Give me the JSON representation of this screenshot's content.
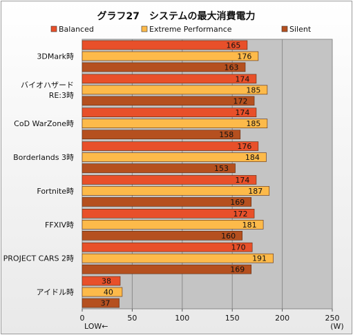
{
  "chart_data": {
    "type": "bar",
    "orientation": "horizontal",
    "title": "グラフ27　システムの最大消費電力",
    "categories": [
      [
        "3DMark時"
      ],
      [
        "バイオハザード",
        "RE:3時"
      ],
      [
        "CoD WarZone時"
      ],
      [
        "Borderlands 3時"
      ],
      [
        "Fortnite時"
      ],
      [
        "FFXIV時"
      ],
      [
        "PROJECT CARS 2時"
      ],
      [
        "アイドル時"
      ]
    ],
    "series": [
      {
        "name": "Balanced",
        "color": "#e8502a",
        "values": [
          165,
          174,
          174,
          176,
          174,
          172,
          170,
          38
        ]
      },
      {
        "name": "Extreme Performance",
        "color": "#fdba4a",
        "values": [
          176,
          185,
          185,
          184,
          187,
          181,
          191,
          40
        ]
      },
      {
        "name": "Silent",
        "color": "#b5501f",
        "values": [
          163,
          172,
          158,
          153,
          169,
          160,
          169,
          37
        ]
      }
    ],
    "xlim": [
      0,
      250
    ],
    "ticks": [
      0,
      50,
      100,
      150,
      200,
      250
    ],
    "unit_label": "(W)",
    "direction_note": "LOW←",
    "grid": true,
    "legend_position": "top"
  }
}
